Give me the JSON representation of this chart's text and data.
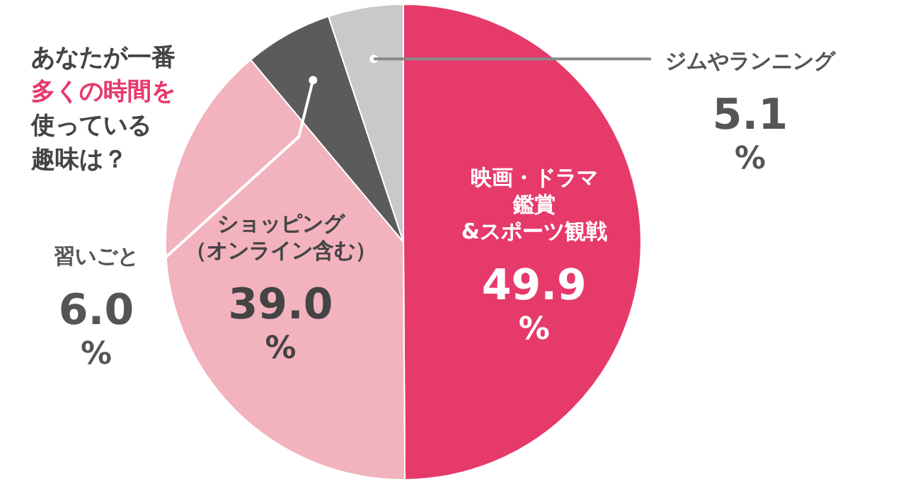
{
  "chart_data": {
    "type": "pie",
    "title": "あなたが一番多くの時間を使っている趣味は？",
    "categories": [
      "映画・ドラマ鑑賞&スポーツ観戦",
      "ショッピング（オンライン含む）",
      "習いごと",
      "ジムやランニング"
    ],
    "values": [
      49.9,
      39.0,
      6.0,
      5.1
    ],
    "colors": [
      "#e63a6b",
      "#f2b2be",
      "#5b5b5b",
      "#c9c9c9"
    ],
    "value_labels": [
      "49.9%",
      "39.0%",
      "6.0%",
      "5.1%"
    ]
  }
}
